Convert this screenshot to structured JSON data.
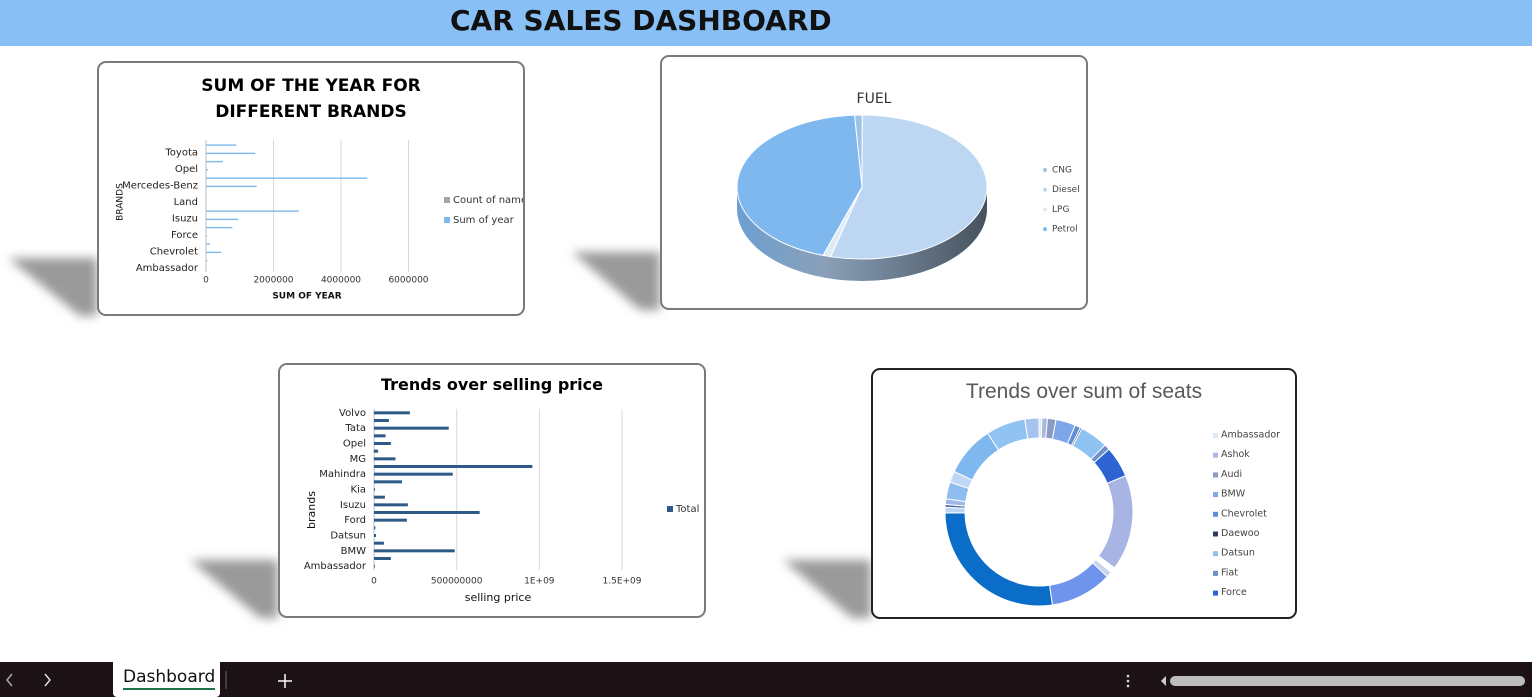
{
  "header": {
    "title": "CAR SALES DASHBOARD"
  },
  "chart_data": [
    {
      "type": "bar",
      "orientation": "horizontal",
      "title": "SUM OF THE YEAR FOR DIFFERENT BRANDS",
      "x_label": "SUM OF YEAR",
      "y_label": "BRANDS",
      "categories": [
        "Ambassador",
        null,
        "Chevrolet",
        null,
        "Force",
        null,
        "Isuzu",
        null,
        "Land",
        null,
        "Mercedes-Benz",
        null,
        "Opel",
        null,
        "Toyota",
        null
      ],
      "series": [
        {
          "name": "Count of name",
          "color": "#a5a5a5",
          "values": [
            10,
            40,
            200,
            60,
            20,
            300,
            400,
            1200,
            10,
            10,
            700,
            2000,
            30,
            240,
            700,
            400
          ]
        },
        {
          "name": "Sum of year",
          "color": "#7cb9ee",
          "values": [
            8000,
            40000,
            450000,
            120000,
            30000,
            780000,
            950000,
            2750000,
            15000,
            20000,
            1500000,
            4780000,
            60000,
            500000,
            1460000,
            900000
          ]
        }
      ],
      "xlim": [
        0,
        6400000
      ],
      "xticks": [
        0,
        2000000,
        4000000,
        6000000
      ],
      "grid": true,
      "legend": "right"
    },
    {
      "type": "pie",
      "title": "FUEL",
      "three_d": true,
      "categories": [
        "CNG",
        "Diesel",
        "LPG",
        "Petrol"
      ],
      "values": [
        1,
        54,
        1,
        44
      ],
      "colors": [
        "#9dc3e6",
        "#bdd7f3",
        "#deebf7",
        "#7fb8ee"
      ],
      "legend": "right"
    },
    {
      "type": "bar",
      "orientation": "horizontal",
      "title": "Trends over selling price",
      "x_label": "selling price",
      "y_label": "brands",
      "categories": [
        "Ambassador",
        null,
        "BMW",
        null,
        "Datsun",
        null,
        "Ford",
        null,
        "Isuzu",
        null,
        "Kia",
        null,
        "Mahindra",
        null,
        "MG",
        null,
        "Opel",
        null,
        "Tata",
        null,
        "Volvo"
      ],
      "series": [
        {
          "name": "Total",
          "color": "#2e5a88",
          "values": [
            5000000,
            102000000,
            488000000,
            60000000,
            12000000,
            8000000,
            199000000,
            639000000,
            205000000,
            66000000,
            5000000,
            169000000,
            476000000,
            958000000,
            130000000,
            25000000,
            102000000,
            70000000,
            452000000,
            90000000,
            217000000
          ]
        }
      ],
      "xlim": [
        0,
        1500000000
      ],
      "xticks": [
        0,
        500000000,
        {
          "value": 1000000000,
          "label": "1E+09"
        },
        {
          "value": 1500000000,
          "label": "1.5E+09"
        }
      ],
      "grid": true,
      "legend": "right"
    },
    {
      "type": "doughnut",
      "title": "Trends over sum of seats",
      "categories": [
        "Ambassador",
        "Ashok",
        "Audi",
        "BMW",
        "Chevrolet",
        "Daewoo",
        "Datsun",
        "Fiat",
        "Force",
        null,
        null,
        null,
        null,
        null,
        null,
        null,
        null,
        null,
        null,
        null,
        null,
        null
      ],
      "values": [
        0.5,
        1,
        1.5,
        3.5,
        1,
        0.3,
        5,
        1,
        5.5,
        17,
        1,
        1,
        11,
        28,
        1,
        0.5,
        1,
        3,
        2,
        9,
        7,
        2.5
      ],
      "colors": [
        "#dde8f6",
        "#a9b8e0",
        "#8c9bc4",
        "#7da7e8",
        "#5b8fd8",
        "#2f3c5a",
        "#8ec2f1",
        "#6f8fc8",
        "#2e63d4",
        "#a8b4e4",
        "#ffffff",
        "#c7d3f1",
        "#6e94ec",
        "#0a6ec8",
        "#bcd4f0",
        "#4d6fa8",
        "#9fb7e6",
        "#8fbdf0",
        "#bfd6f4",
        "#7fb8ee",
        "#90c2f2",
        "#a5c3ee"
      ],
      "legend": "right"
    }
  ],
  "sheet_tabs": [
    "Dashboard"
  ]
}
